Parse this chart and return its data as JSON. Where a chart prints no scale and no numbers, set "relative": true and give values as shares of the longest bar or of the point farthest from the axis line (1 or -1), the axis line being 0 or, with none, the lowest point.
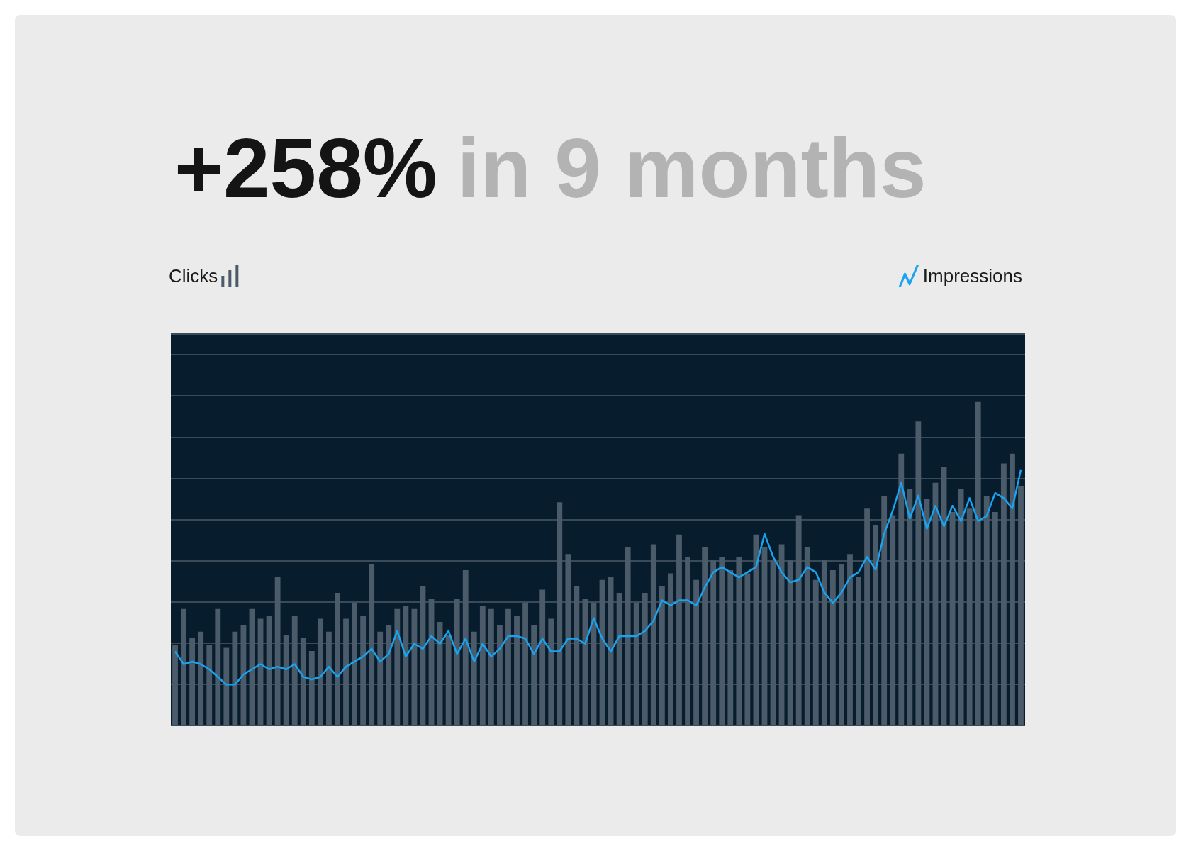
{
  "chart_data": [
    {
      "type": "bar",
      "title": "+258%",
      "subtitle": "in 9 months",
      "relative": true,
      "grid": "y",
      "legend": "top left",
      "categories": [
        null,
        null,
        null,
        null,
        null,
        null,
        null,
        null,
        null,
        null,
        null,
        null,
        null,
        null,
        null,
        null,
        null,
        null,
        null,
        null,
        null,
        null,
        null,
        null,
        null,
        null,
        null,
        null,
        null,
        null,
        null,
        null,
        null,
        null,
        null,
        null,
        null,
        null,
        null,
        null,
        null,
        null,
        null,
        null,
        null,
        null,
        null,
        null,
        null,
        null,
        null,
        null,
        null,
        null,
        null,
        null,
        null,
        null,
        null,
        null,
        null,
        null,
        null,
        null,
        null,
        null,
        null,
        null,
        null,
        null,
        null,
        null,
        null,
        null,
        null,
        null,
        null,
        null,
        null,
        null,
        null,
        null,
        null,
        null,
        null,
        null,
        null,
        null,
        null,
        null,
        null,
        null,
        null,
        null,
        null,
        null,
        null,
        null,
        null,
        null
      ],
      "series": [
        {
          "name": "Clicks",
          "color": "#4b5b69",
          "values": [
            0.25,
            0.36,
            0.27,
            0.29,
            0.25,
            0.36,
            0.24,
            0.29,
            0.31,
            0.36,
            0.33,
            0.34,
            0.46,
            0.28,
            0.34,
            0.27,
            0.23,
            0.33,
            0.29,
            0.41,
            0.33,
            0.38,
            0.34,
            0.5,
            0.29,
            0.31,
            0.36,
            0.37,
            0.36,
            0.43,
            0.39,
            0.32,
            0.28,
            0.39,
            0.48,
            0.29,
            0.37,
            0.36,
            0.31,
            0.36,
            0.34,
            0.38,
            0.31,
            0.42,
            0.33,
            0.69,
            0.53,
            0.43,
            0.39,
            0.38,
            0.45,
            0.46,
            0.41,
            0.55,
            0.38,
            0.41,
            0.56,
            0.43,
            0.47,
            0.59,
            0.52,
            0.45,
            0.55,
            0.51,
            0.52,
            0.48,
            0.52,
            0.47,
            0.59,
            0.55,
            0.51,
            0.56,
            0.51,
            0.65,
            0.55,
            0.45,
            0.51,
            0.48,
            0.5,
            0.53,
            0.46,
            0.67,
            0.62,
            0.71,
            0.65,
            0.84,
            0.73,
            0.94,
            0.7,
            0.75,
            0.8,
            0.66,
            0.73,
            0.67,
            1,
            0.71,
            0.66,
            0.81,
            0.84,
            0.74
          ]
        }
      ]
    },
    {
      "type": "line",
      "relative": true,
      "legend": "top right",
      "categories": [
        null,
        null,
        null,
        null,
        null,
        null,
        null,
        null,
        null,
        null,
        null,
        null,
        null,
        null,
        null,
        null,
        null,
        null,
        null,
        null,
        null,
        null,
        null,
        null,
        null,
        null,
        null,
        null,
        null,
        null,
        null,
        null,
        null,
        null,
        null,
        null,
        null,
        null,
        null,
        null,
        null,
        null,
        null,
        null,
        null,
        null,
        null,
        null,
        null,
        null,
        null,
        null,
        null,
        null,
        null,
        null,
        null,
        null,
        null,
        null,
        null,
        null,
        null,
        null,
        null,
        null,
        null,
        null,
        null,
        null,
        null,
        null,
        null,
        null,
        null,
        null,
        null,
        null,
        null,
        null,
        null,
        null,
        null,
        null,
        null,
        null,
        null,
        null,
        null,
        null,
        null,
        null,
        null,
        null,
        null,
        null,
        null,
        null,
        null,
        null
      ],
      "series": [
        {
          "name": "Impressions",
          "color": "#1aa3ee",
          "values": [
            0.29,
            0.24,
            0.25,
            0.24,
            0.22,
            0.19,
            0.16,
            0.16,
            0.2,
            0.22,
            0.24,
            0.22,
            0.23,
            0.22,
            0.24,
            0.19,
            0.18,
            0.19,
            0.23,
            0.19,
            0.23,
            0.25,
            0.27,
            0.3,
            0.25,
            0.28,
            0.37,
            0.27,
            0.32,
            0.3,
            0.35,
            0.32,
            0.37,
            0.28,
            0.34,
            0.25,
            0.32,
            0.27,
            0.3,
            0.35,
            0.35,
            0.34,
            0.28,
            0.34,
            0.29,
            0.29,
            0.34,
            0.34,
            0.32,
            0.42,
            0.34,
            0.29,
            0.35,
            0.35,
            0.35,
            0.37,
            0.41,
            0.49,
            0.47,
            0.49,
            0.49,
            0.47,
            0.54,
            0.6,
            0.62,
            0.6,
            0.58,
            0.6,
            0.62,
            0.75,
            0.66,
            0.6,
            0.56,
            0.57,
            0.62,
            0.6,
            0.52,
            0.48,
            0.52,
            0.58,
            0.6,
            0.66,
            0.61,
            0.75,
            0.84,
            0.95,
            0.81,
            0.9,
            0.77,
            0.86,
            0.78,
            0.86,
            0.8,
            0.89,
            0.8,
            0.82,
            0.91,
            0.89,
            0.85,
            1
          ]
        }
      ]
    }
  ]
}
